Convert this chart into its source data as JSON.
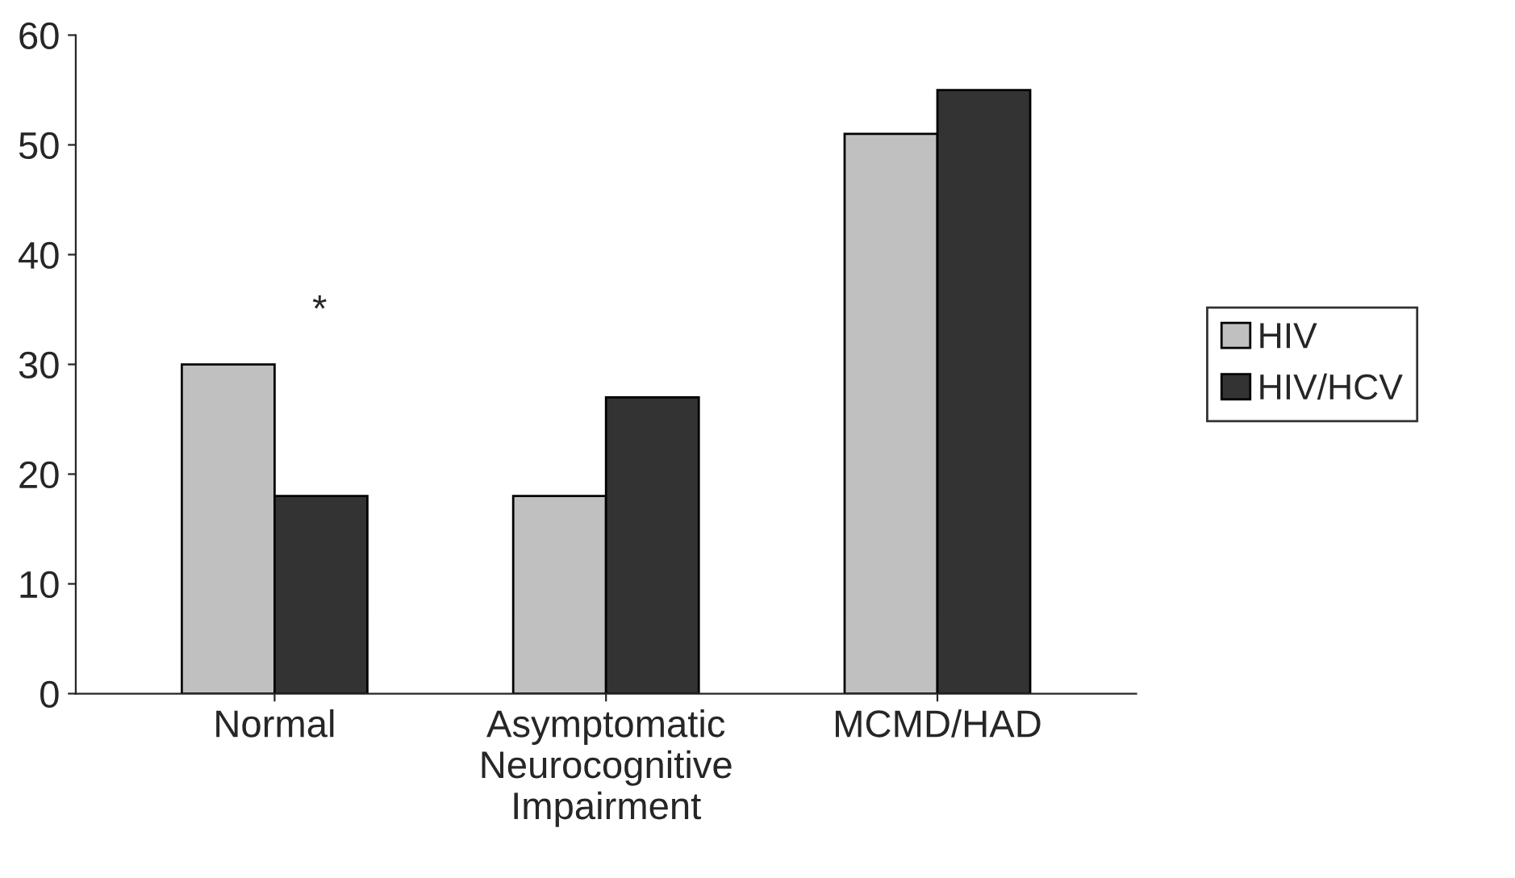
{
  "chart_data": {
    "type": "bar",
    "categories": [
      "Normal",
      "Asymptomatic\nNeurocognitive\nImpairment",
      "MCMD/HAD"
    ],
    "series": [
      {
        "name": "HIV",
        "color": "#c0c0c0",
        "values": [
          30,
          18,
          51
        ]
      },
      {
        "name": "HIV/HCV",
        "color": "#333333",
        "values": [
          18,
          27,
          55
        ]
      }
    ],
    "ylim": [
      0,
      60
    ],
    "yticks": [
      0,
      10,
      20,
      30,
      40,
      50,
      60
    ],
    "grid": false,
    "legend": "right",
    "annotations": [
      "*"
    ]
  }
}
